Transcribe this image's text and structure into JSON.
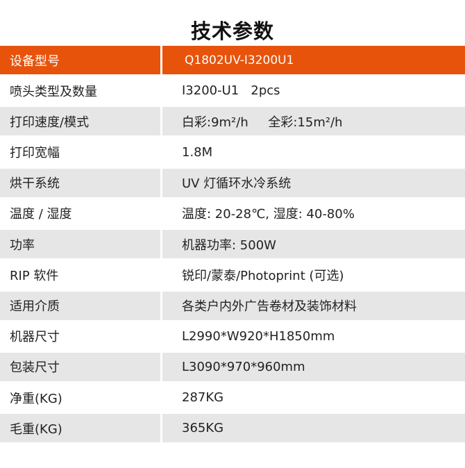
{
  "title": "技术参数",
  "header": {
    "label": "设备型号",
    "value": "Q1802UV-I3200U1"
  },
  "rows": [
    {
      "label": "喷头类型及数量",
      "value": "I3200-U1   2pcs"
    },
    {
      "label": "打印速度/模式",
      "value": "白彩:9m²/h     全彩:15m²/h"
    },
    {
      "label": "打印宽幅",
      "value": "1.8M"
    },
    {
      "label": "烘干系统",
      "value": "UV 灯循环水冷系统"
    },
    {
      "label": "温度 / 湿度",
      "value": "温度: 20-28℃, 湿度: 40-80%"
    },
    {
      "label": "功率",
      "value": "机器功率: 500W"
    },
    {
      "label": "RIP 软件",
      "value": "锐印/蒙泰/Photoprint (可选)"
    },
    {
      "label": "适用介质",
      "value": "各类户内外广告卷材及装饰材料"
    },
    {
      "label": "机器尺寸",
      "value": "L2990*W920*H1850mm"
    },
    {
      "label": "包装尺寸",
      "value": "L3090*970*960mm"
    },
    {
      "label": "净重(KG)",
      "value": "287KG"
    },
    {
      "label": "毛重(KG)",
      "value": "365KG"
    }
  ],
  "colors": {
    "accent": "#e8530b",
    "stripe": "#e6e6e6"
  }
}
